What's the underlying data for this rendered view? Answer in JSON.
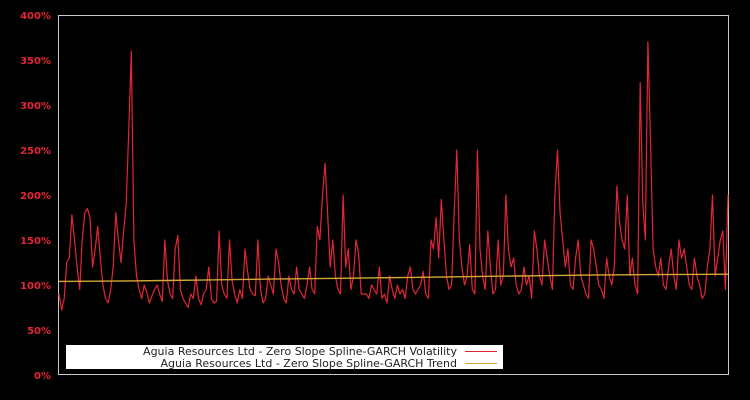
{
  "chart_data": {
    "type": "line",
    "title": "",
    "xlabel": "",
    "ylabel": "",
    "ylim": [
      0,
      400
    ],
    "y_unit": "%",
    "y_ticks": [
      "0%",
      "50%",
      "100%",
      "150%",
      "200%",
      "250%",
      "300%",
      "350%",
      "400%"
    ],
    "grid": false,
    "legend_position": "lower-left",
    "background": "#000000",
    "series": [
      {
        "name": "Aguia Resources Ltd - Zero Slope Spline-GARCH Volatility",
        "color": "#e32636",
        "values": [
          90,
          72,
          85,
          125,
          130,
          178,
          150,
          120,
          95,
          150,
          180,
          185,
          175,
          120,
          140,
          165,
          130,
          100,
          85,
          80,
          95,
          120,
          180,
          150,
          125,
          160,
          190,
          270,
          360,
          150,
          110,
          95,
          85,
          100,
          92,
          80,
          88,
          95,
          100,
          90,
          82,
          150,
          105,
          90,
          85,
          140,
          155,
          95,
          85,
          80,
          75,
          90,
          85,
          110,
          85,
          78,
          90,
          95,
          120,
          85,
          80,
          82,
          160,
          100,
          90,
          85,
          150,
          105,
          90,
          80,
          95,
          85,
          140,
          115,
          95,
          90,
          88,
          150,
          95,
          80,
          85,
          110,
          100,
          90,
          140,
          125,
          100,
          85,
          80,
          110,
          95,
          90,
          120,
          95,
          90,
          85,
          100,
          120,
          95,
          90,
          165,
          150,
          200,
          235,
          180,
          120,
          150,
          110,
          95,
          90,
          200,
          120,
          140,
          95,
          110,
          150,
          135,
          90,
          90,
          90,
          85,
          100,
          95,
          90,
          120,
          85,
          90,
          80,
          110,
          95,
          85,
          100,
          90,
          95,
          85,
          110,
          120,
          95,
          90,
          95,
          100,
          115,
          90,
          85,
          150,
          140,
          175,
          130,
          195,
          150,
          110,
          95,
          100,
          180,
          250,
          150,
          120,
          100,
          110,
          145,
          95,
          90,
          250,
          140,
          110,
          95,
          160,
          120,
          90,
          95,
          150,
          100,
          110,
          200,
          140,
          120,
          130,
          100,
          90,
          95,
          120,
          100,
          110,
          85,
          160,
          140,
          110,
          100,
          150,
          130,
          110,
          95,
          200,
          250,
          180,
          150,
          120,
          140,
          100,
          95,
          130,
          150,
          110,
          100,
          90,
          85,
          150,
          140,
          120,
          100,
          95,
          85,
          130,
          110,
          100,
          120,
          210,
          170,
          150,
          140,
          200,
          110,
          130,
          100,
          90,
          325,
          190,
          150,
          370,
          260,
          140,
          120,
          110,
          130,
          100,
          95,
          120,
          140,
          110,
          95,
          150,
          130,
          140,
          120,
          100,
          95,
          130,
          110,
          100,
          85,
          90,
          120,
          140,
          200,
          110,
          130,
          150,
          160,
          95,
          200
        ]
      },
      {
        "name": "Aguia Resources Ltd - Zero Slope Spline-GARCH Trend",
        "color": "#d4a838",
        "values": [
          104,
          104.2,
          104.5,
          105,
          105.5,
          106,
          106.5,
          107,
          107.5,
          108,
          108.5,
          109,
          109.5,
          110,
          110.5,
          111,
          111.3,
          111.6,
          111.8,
          112
        ]
      }
    ]
  },
  "legend": {
    "items": [
      {
        "label": "Aguia Resources Ltd - Zero Slope Spline-GARCH Volatility",
        "color": "#e32636"
      },
      {
        "label": "Aguia Resources Ltd - Zero Slope Spline-GARCH Trend",
        "color": "#d4a838"
      }
    ]
  }
}
